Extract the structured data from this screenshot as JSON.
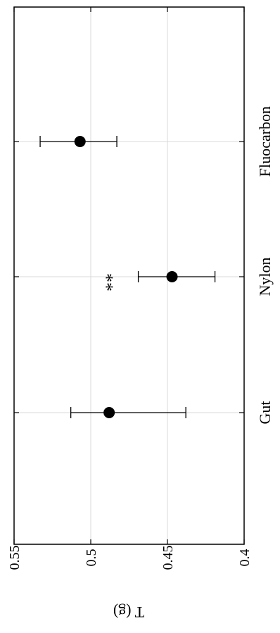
{
  "chart_data": {
    "type": "scatter",
    "orientation": "rotated-90",
    "categories": [
      "Gut",
      "Nylon",
      "Fluocarbon"
    ],
    "values": [
      0.488,
      0.447,
      0.507
    ],
    "error_low": [
      0.438,
      0.419,
      0.483
    ],
    "error_high": [
      0.513,
      0.469,
      0.533
    ],
    "annotations": [
      {
        "category": "Nylon",
        "text": "**",
        "value": 0.482
      }
    ],
    "ylabel": "T (g)",
    "ylim": [
      0.55,
      0.4
    ],
    "yticks": [
      "0.55",
      "0.5",
      "0.45",
      "0.4"
    ],
    "ytick_values": [
      0.55,
      0.5,
      0.45,
      0.4
    ],
    "grid": true,
    "legend": "none",
    "colors": {
      "marker": "#000000",
      "grid": "#d9d9d9",
      "axis": "#000000"
    }
  }
}
